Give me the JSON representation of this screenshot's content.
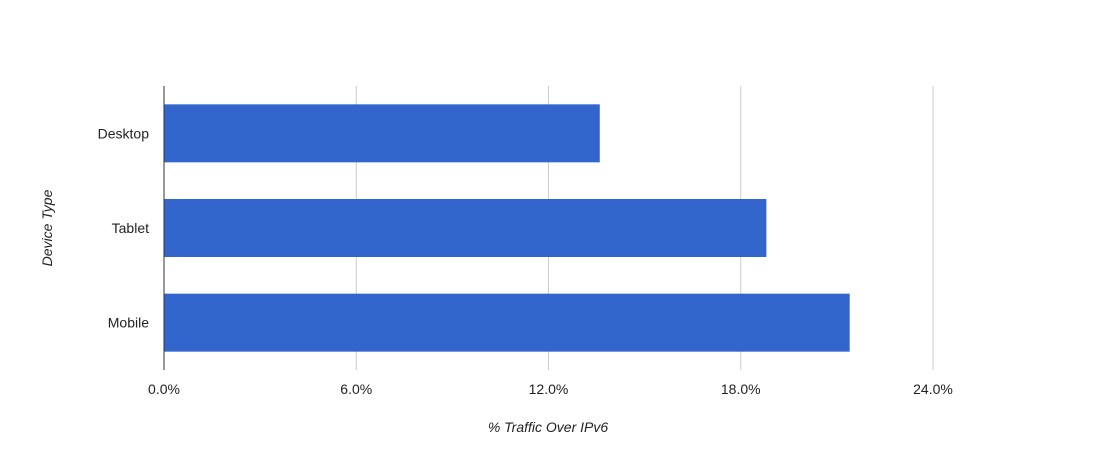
{
  "chart_data": {
    "type": "bar",
    "orientation": "horizontal",
    "categories": [
      "Desktop",
      "Tablet",
      "Mobile"
    ],
    "values": [
      13.6,
      18.8,
      21.4
    ],
    "xlabel": "% Traffic Over IPv6",
    "ylabel": "Device Type",
    "xlim": [
      0,
      24
    ],
    "x_ticks": [
      "0.0%",
      "6.0%",
      "12.0%",
      "18.0%",
      "24.0%"
    ],
    "grid": "vertical",
    "legend": "none",
    "bar_color": "#3366cc"
  }
}
